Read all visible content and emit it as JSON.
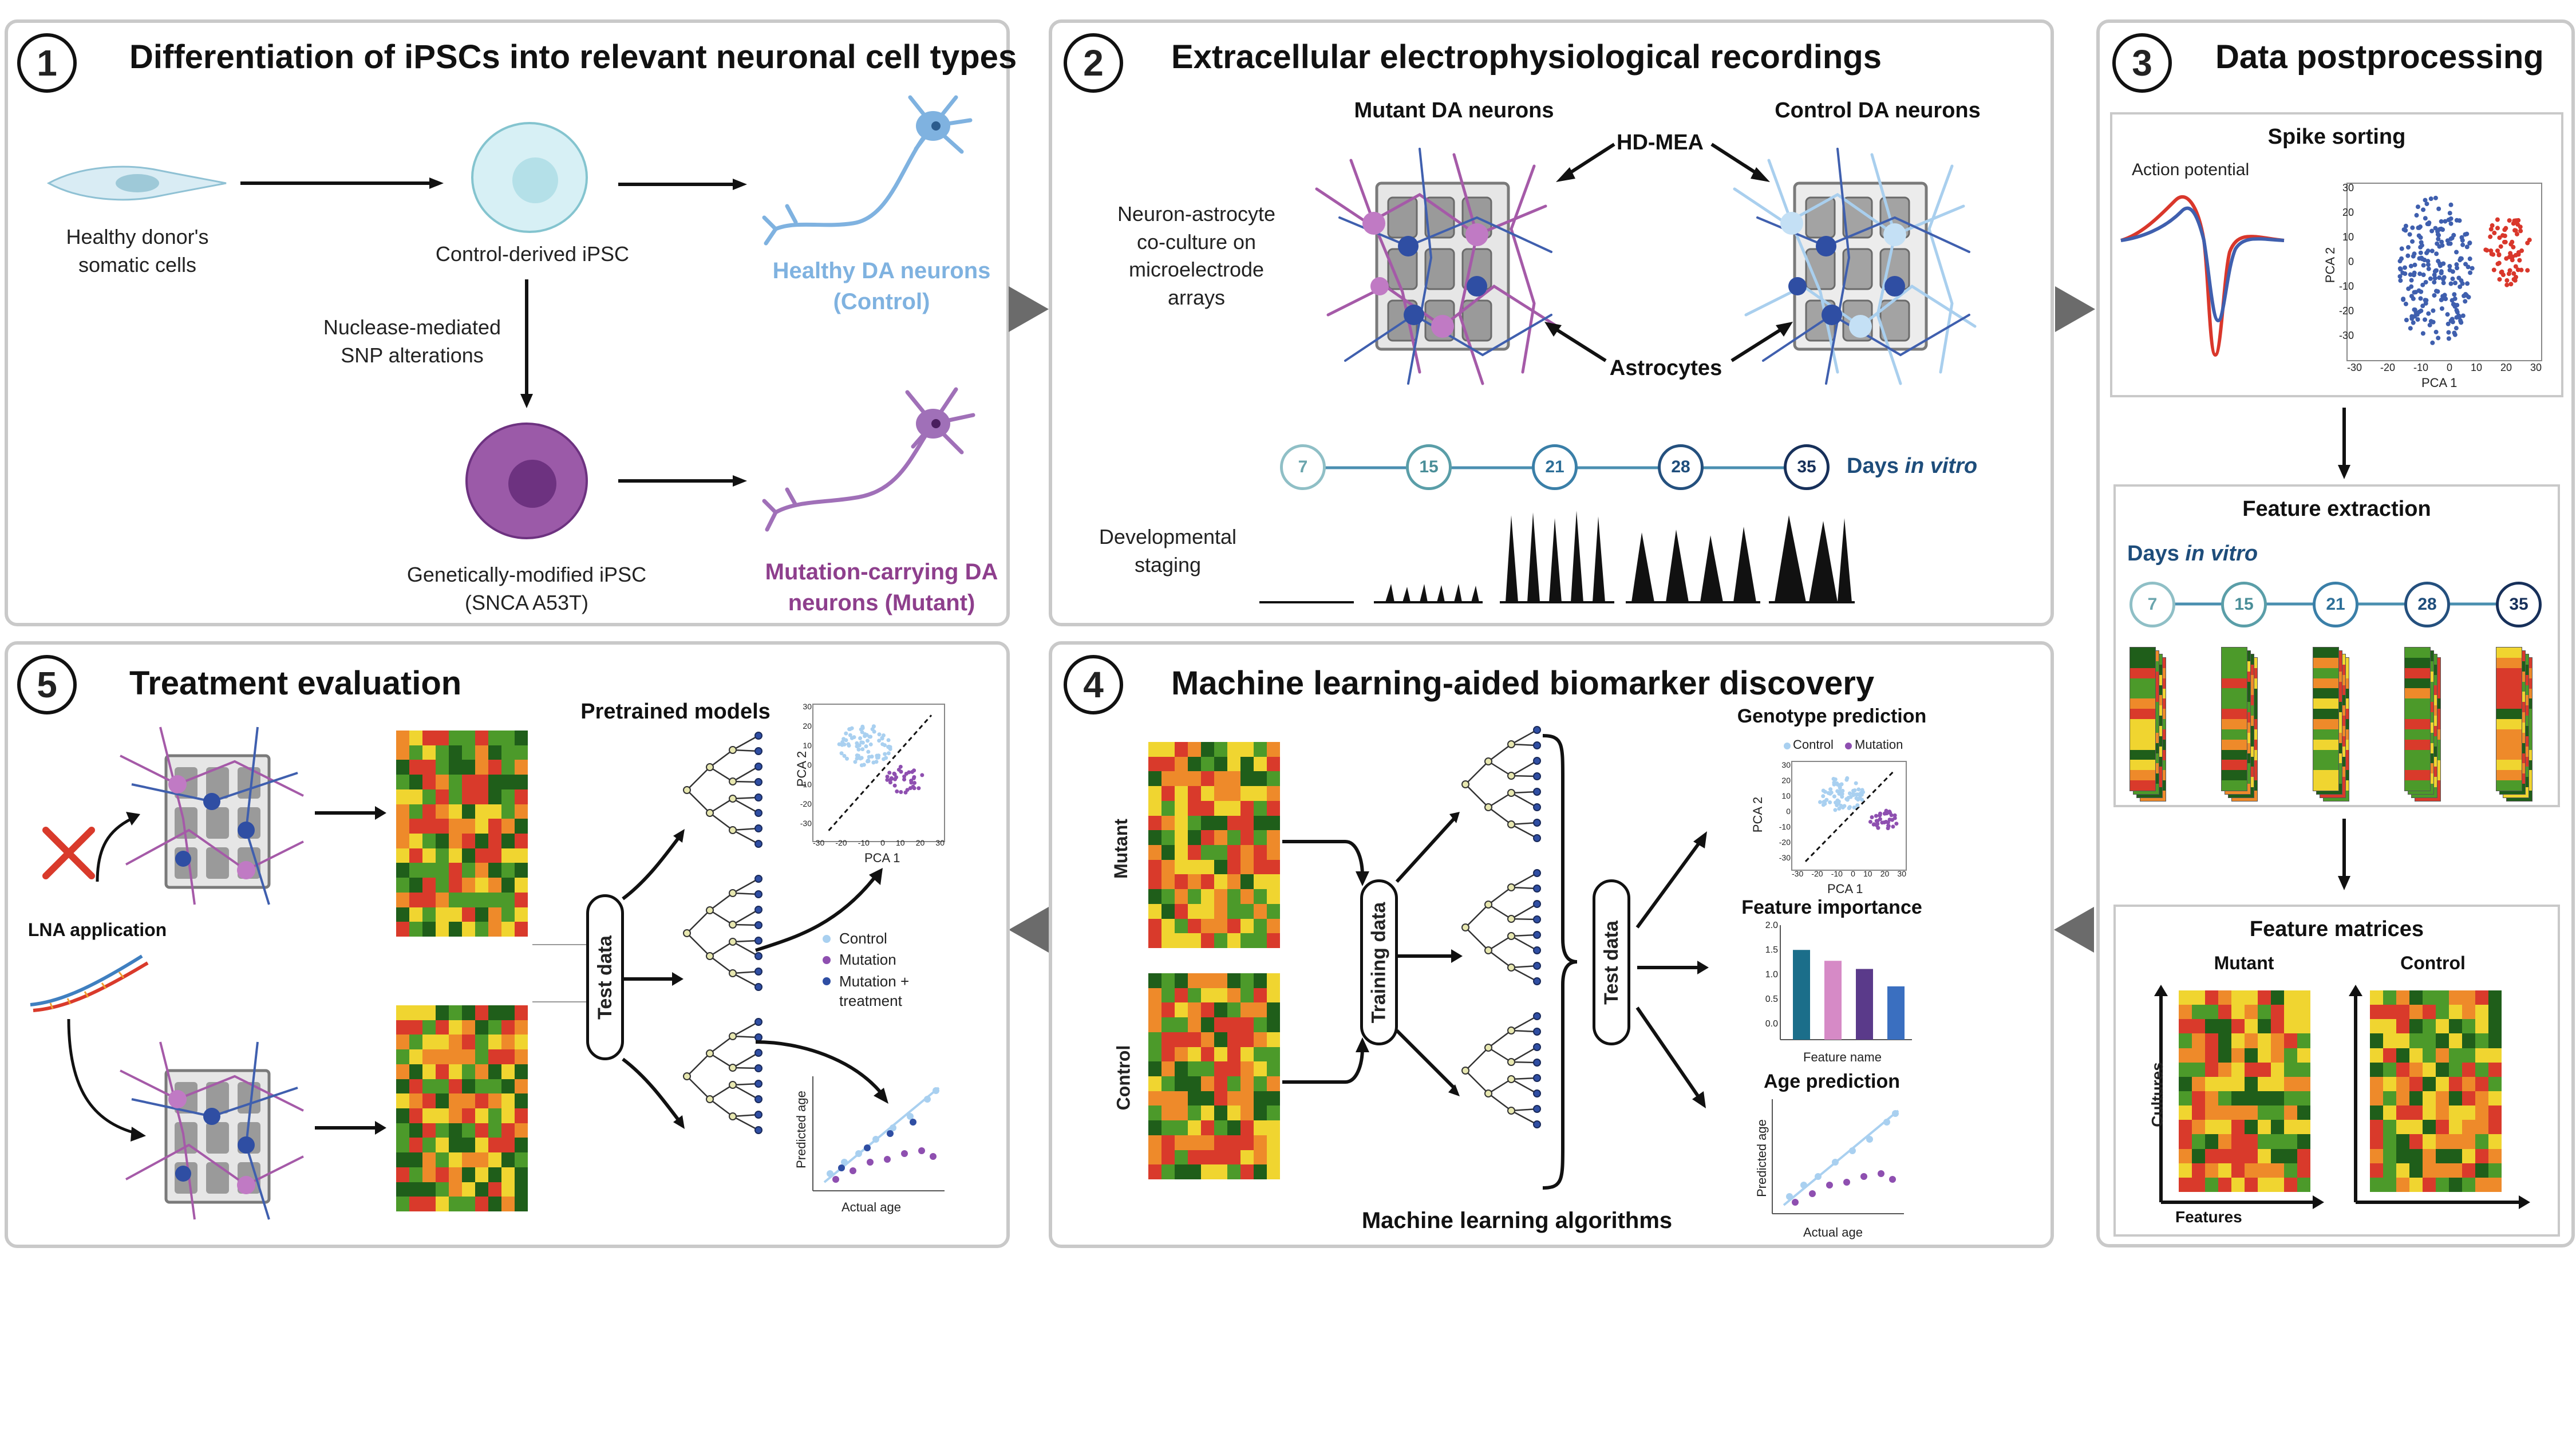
{
  "panel1": {
    "number": "1",
    "title": "Differentiation of iPSCs into relevant neuronal cell types",
    "somatic_label": "Healthy donor's\nsomatic cells",
    "control_ipsc_label": "Control-derived iPSC",
    "nuclease_label": "Nuclease-mediated\nSNP alterations",
    "modified_ipsc_label": "Genetically-modified iPSC\n(SNCA A53T)",
    "healthy_neurons_label": "Healthy DA neurons\n(Control)",
    "mutant_neurons_label": "Mutation-carrying DA\nneurons (Mutant)"
  },
  "panel2": {
    "number": "2",
    "title": "Extracellular electrophysiological recordings",
    "mutant_label": "Mutant DA neurons",
    "control_label": "Control DA neurons",
    "coculture_label": "Neuron-astrocyte\nco-culture on\nmicroelectrode\narrays",
    "hdmea_label": "HD-MEA",
    "astrocytes_label": "Astrocytes",
    "days": [
      "7",
      "15",
      "21",
      "28",
      "35"
    ],
    "days_label": "Days",
    "days_label_italic": "in vitro",
    "staging_label": "Developmental\nstaging"
  },
  "panel3": {
    "number": "3",
    "title": "Data postprocessing",
    "spike_sorting_title": "Spike sorting",
    "action_potential_label": "Action potential",
    "pca_xlabel": "PCA 1",
    "pca_ylabel": "PCA 2",
    "pca_xticks": [
      "-30",
      "-20",
      "-10",
      "0",
      "10",
      "20",
      "30"
    ],
    "pca_yticks": [
      "30",
      "20",
      "10",
      "0",
      "-10",
      "-20",
      "-30"
    ],
    "feature_extraction_title": "Feature extraction",
    "days_label": "Days",
    "days_label_italic": "in vitro",
    "days": [
      "7",
      "15",
      "21",
      "28",
      "35"
    ],
    "feature_matrices_title": "Feature matrices",
    "mutant_label": "Mutant",
    "control_label": "Control",
    "cultures_label": "Cultures",
    "features_label": "Features"
  },
  "panel4": {
    "number": "4",
    "title": "Machine learning-aided biomarker discovery",
    "mutant_label": "Mutant",
    "control_label": "Control",
    "training_label": "Training data",
    "test_label": "Test data",
    "algorithms_label": "Machine learning algorithms",
    "genotype_title": "Genotype prediction",
    "legend_control": "Control",
    "legend_mutation": "Mutation",
    "pca_xlabel": "PCA 1",
    "pca_ylabel": "PCA 2",
    "pca_xticks": [
      "-30",
      "-20",
      "-10",
      "0",
      "10",
      "20",
      "30"
    ],
    "pca_yticks": [
      "30",
      "20",
      "10",
      "0",
      "-10",
      "-20",
      "-30"
    ],
    "importance_title": "Feature importance",
    "importance_xlabel": "Feature name",
    "importance_yticks": [
      "2.0",
      "1.5",
      "1.0",
      "0.5",
      "0.0"
    ],
    "importance_values": [
      1.65,
      1.45,
      1.3,
      0.98
    ],
    "age_title": "Age prediction",
    "age_xlabel": "Actual age",
    "age_ylabel": "Predicted age"
  },
  "panel5": {
    "number": "5",
    "title": "Treatment evaluation",
    "lna_label": "LNA application",
    "pretrained_label": "Pretrained models",
    "test_label": "Test data",
    "legend_control": "Control",
    "legend_mutation": "Mutation",
    "legend_treatment": "Mutation +\ntreatment",
    "pca_xlabel": "PCA 1",
    "pca_ylabel": "PCA 2",
    "pca_xticks": [
      "-30",
      "-20",
      "-10",
      "0",
      "10",
      "20",
      "30"
    ],
    "pca_yticks": [
      "30",
      "20",
      "10",
      "0",
      "-10",
      "-20",
      "-30"
    ],
    "age_xlabel": "Actual age",
    "age_ylabel": "Predicted age"
  },
  "colors": {
    "control_blue": "#7fb2e0",
    "mutant_purple": "#8e3f8d",
    "navy": "#1e4d7b",
    "teal": "#5a9ea8",
    "heat_red": "#d93a2b",
    "heat_orange": "#ee8a2a",
    "heat_yellow": "#f0d530",
    "heat_green": "#4c9a2a",
    "heat_dark_green": "#1f5e1a"
  }
}
